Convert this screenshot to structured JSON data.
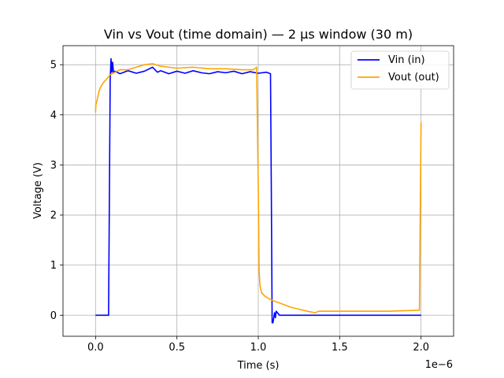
{
  "chart_data": {
    "type": "line",
    "title": "Vin vs Vout (time domain) — 2 µs window (30 m)",
    "xlabel": "Time (s)",
    "ylabel": "Voltage (V)",
    "x_offset_label": "1e−6",
    "xlim": [
      -2e-07,
      2.2e-06
    ],
    "ylim": [
      -0.42,
      5.38
    ],
    "xticks": [
      0,
      5e-07,
      1e-06,
      1.5e-06,
      2e-06
    ],
    "xtick_labels": [
      "0.0",
      "0.5",
      "1.0",
      "1.5",
      "2.0"
    ],
    "yticks": [
      0,
      1,
      2,
      3,
      4,
      5
    ],
    "ytick_labels": [
      "0",
      "1",
      "2",
      "3",
      "4",
      "5"
    ],
    "grid": true,
    "legend_position": "top-right",
    "series": [
      {
        "name": "Vin (in)",
        "color": "#0000ff",
        "x": [
          0,
          8e-08,
          9e-08,
          9.5e-08,
          1e-07,
          1.05e-07,
          1.1e-07,
          1.2e-07,
          1.5e-07,
          2e-07,
          2.5e-07,
          3e-07,
          3.5e-07,
          3.8e-07,
          4e-07,
          4.5e-07,
          5e-07,
          5.5e-07,
          6e-07,
          6.5e-07,
          7e-07,
          7.5e-07,
          8e-07,
          8.5e-07,
          9e-07,
          9.5e-07,
          1e-06,
          1.05e-06,
          1.075e-06,
          1.08e-06,
          1.085e-06,
          1.09e-06,
          1.1e-06,
          1.105e-06,
          1.11e-06,
          1.13e-06,
          1.2e-06,
          1.5e-06,
          2e-06
        ],
        "y": [
          0,
          0,
          4.7,
          5.12,
          4.85,
          5.05,
          4.85,
          4.87,
          4.82,
          4.88,
          4.83,
          4.87,
          4.95,
          4.85,
          4.88,
          4.82,
          4.87,
          4.83,
          4.88,
          4.84,
          4.82,
          4.86,
          4.84,
          4.87,
          4.82,
          4.86,
          4.83,
          4.85,
          4.82,
          2.5,
          -0.15,
          -0.15,
          0.05,
          -0.05,
          0.08,
          0.0,
          0.0,
          0.0,
          0.0
        ]
      },
      {
        "name": "Vout (out)",
        "color": "#ffa500",
        "x": [
          0,
          2e-09,
          1e-08,
          2e-08,
          3e-08,
          5e-08,
          7e-08,
          9e-08,
          1.2e-07,
          1.5e-07,
          2e-07,
          2.5e-07,
          3e-07,
          3.5e-07,
          4e-07,
          4.5e-07,
          5e-07,
          6e-07,
          7e-07,
          8e-07,
          9e-07,
          9.7e-07,
          9.9e-07,
          1e-06,
          1.005e-06,
          1.01e-06,
          1.02e-06,
          1.04e-06,
          1.07e-06,
          1.1e-06,
          1.15e-06,
          1.2e-06,
          1.25e-06,
          1.3e-06,
          1.35e-06,
          1.37e-06,
          1.4e-06,
          1.6e-06,
          1.8e-06,
          1.99e-06,
          1.995e-06,
          2e-06
        ],
        "y": [
          4.05,
          4.2,
          4.3,
          4.45,
          4.55,
          4.65,
          4.72,
          4.8,
          4.85,
          4.9,
          4.9,
          4.95,
          5.0,
          5.02,
          4.97,
          4.95,
          4.93,
          4.95,
          4.92,
          4.92,
          4.9,
          4.9,
          4.95,
          2.5,
          0.9,
          0.6,
          0.45,
          0.38,
          0.32,
          0.28,
          0.22,
          0.16,
          0.12,
          0.08,
          0.05,
          0.08,
          0.08,
          0.08,
          0.08,
          0.1,
          2.0,
          3.85
        ]
      }
    ]
  }
}
